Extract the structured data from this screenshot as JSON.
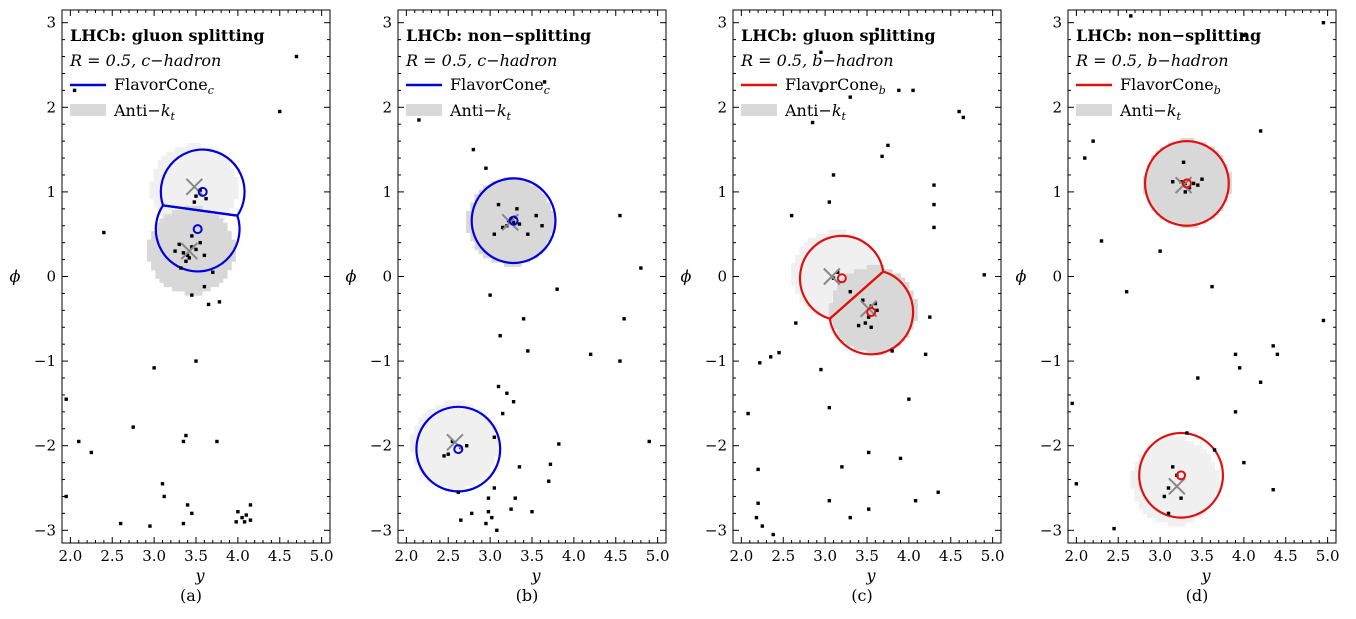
{
  "chart_data": [
    {
      "type": "scatter",
      "panel_label": "(a)",
      "title": "LHCb: gluon splitting",
      "subtitle": "R = 0.5, c−hadron",
      "xlabel": "y",
      "ylabel": "ϕ",
      "xlim": [
        1.9,
        5.1
      ],
      "ylim": [
        -3.15,
        3.15
      ],
      "xticks": [
        "2.0",
        "2.5",
        "3.0",
        "3.5",
        "4.0",
        "4.5",
        "5.0"
      ],
      "yticks": [
        "−3",
        "−2",
        "−1",
        "0",
        "1",
        "2",
        "3"
      ],
      "legend": [
        {
          "label": "FlavorCone",
          "sub": "c",
          "color": "#0000dd",
          "kind": "line"
        },
        {
          "label": "Anti−k",
          "sub": "t",
          "color": "#d9d9d9",
          "kind": "box"
        }
      ],
      "cone_color": "#0000dd",
      "cones": [
        {
          "cx": 3.58,
          "cy": 1.0,
          "r": 0.5,
          "clip": {
            "cx": 3.52,
            "cy": 0.56,
            "side": "outside"
          }
        },
        {
          "cx": 3.52,
          "cy": 0.56,
          "r": 0.5,
          "clip": {
            "cx": 3.58,
            "cy": 1.0,
            "side": "inside"
          }
        }
      ],
      "cone_centers": [
        [
          3.58,
          1.0
        ],
        [
          3.52,
          0.56
        ]
      ],
      "jet_axes": [
        [
          3.48,
          1.06
        ],
        [
          3.42,
          0.3
        ]
      ],
      "antikt_regions": [
        {
          "cx": 3.45,
          "cy": 1.02,
          "r": 0.5,
          "fill": "#f0f0f0"
        },
        {
          "cx": 3.42,
          "cy": 0.28,
          "r": 0.5,
          "fill": "#d8d8d8"
        }
      ],
      "particles": [
        [
          3.5,
          0.95
        ],
        [
          3.55,
          1.02
        ],
        [
          3.48,
          0.88
        ],
        [
          3.62,
          0.92
        ],
        [
          3.35,
          0.28
        ],
        [
          3.4,
          0.25
        ],
        [
          3.45,
          0.35
        ],
        [
          3.38,
          0.18
        ],
        [
          3.5,
          0.32
        ],
        [
          3.3,
          0.38
        ],
        [
          3.42,
          0.22
        ],
        [
          3.25,
          0.3
        ],
        [
          3.55,
          0.4
        ],
        [
          3.32,
          0.1
        ],
        [
          3.6,
          0.25
        ],
        [
          3.7,
          0.05
        ],
        [
          3.6,
          -0.12
        ],
        [
          3.65,
          -0.33
        ],
        [
          3.45,
          0.48
        ],
        [
          2.4,
          0.52
        ],
        [
          3.45,
          -0.22
        ],
        [
          3.78,
          -0.3
        ],
        [
          3.0,
          -1.08
        ],
        [
          3.5,
          -1.0
        ],
        [
          4.7,
          2.6
        ],
        [
          4.5,
          1.95
        ],
        [
          2.05,
          2.2
        ],
        [
          1.95,
          -1.45
        ],
        [
          2.1,
          -1.95
        ],
        [
          2.25,
          -2.08
        ],
        [
          2.75,
          -1.78
        ],
        [
          3.35,
          -1.95
        ],
        [
          3.38,
          -1.88
        ],
        [
          3.1,
          -2.45
        ],
        [
          3.12,
          -2.6
        ],
        [
          3.45,
          -2.8
        ],
        [
          3.4,
          -2.7
        ],
        [
          2.95,
          -2.95
        ],
        [
          2.6,
          -2.92
        ],
        [
          1.95,
          -2.6
        ],
        [
          3.75,
          -1.95
        ],
        [
          4.0,
          -2.78
        ],
        [
          4.05,
          -2.85
        ],
        [
          4.1,
          -2.82
        ],
        [
          4.15,
          -2.7
        ],
        [
          3.98,
          -2.9
        ],
        [
          4.08,
          -2.9
        ],
        [
          4.15,
          -2.88
        ],
        [
          3.35,
          -2.92
        ]
      ]
    },
    {
      "type": "scatter",
      "panel_label": "(b)",
      "title": "LHCb: non−splitting",
      "subtitle": "R = 0.5, c−hadron",
      "xlabel": "y",
      "ylabel": "ϕ",
      "xlim": [
        1.9,
        5.1
      ],
      "ylim": [
        -3.15,
        3.15
      ],
      "xticks": [
        "2.0",
        "2.5",
        "3.0",
        "3.5",
        "4.0",
        "4.5",
        "5.0"
      ],
      "yticks": [
        "−3",
        "−2",
        "−1",
        "0",
        "1",
        "2",
        "3"
      ],
      "legend": [
        {
          "label": "FlavorCone",
          "sub": "c",
          "color": "#0000dd",
          "kind": "line"
        },
        {
          "label": "Anti−k",
          "sub": "t",
          "color": "#d9d9d9",
          "kind": "box"
        }
      ],
      "cone_color": "#0000dd",
      "cones": [
        {
          "cx": 3.28,
          "cy": 0.66,
          "r": 0.5
        },
        {
          "cx": 2.62,
          "cy": -2.04,
          "r": 0.5
        }
      ],
      "cone_centers": [
        [
          3.28,
          0.66
        ],
        [
          2.62,
          -2.04
        ]
      ],
      "jet_axes": [
        [
          3.24,
          0.64
        ],
        [
          2.58,
          -1.96
        ]
      ],
      "antikt_regions": [
        {
          "cx": 3.22,
          "cy": 0.62,
          "r": 0.5,
          "fill": "#d8d8d8"
        },
        {
          "cx": 2.55,
          "cy": -2.02,
          "r": 0.5,
          "fill": "#f0f0f0"
        }
      ],
      "particles": [
        [
          3.22,
          0.66
        ],
        [
          3.25,
          0.68
        ],
        [
          3.28,
          0.64
        ],
        [
          3.3,
          0.7
        ],
        [
          3.2,
          0.6
        ],
        [
          3.35,
          0.62
        ],
        [
          3.15,
          0.58
        ],
        [
          3.45,
          0.5
        ],
        [
          3.55,
          0.72
        ],
        [
          3.62,
          0.6
        ],
        [
          3.1,
          0.85
        ],
        [
          3.32,
          0.8
        ],
        [
          3.05,
          0.5
        ],
        [
          2.55,
          -1.95
        ],
        [
          2.5,
          -2.1
        ],
        [
          2.65,
          -2.02
        ],
        [
          2.45,
          -2.12
        ],
        [
          2.72,
          -2.0
        ],
        [
          3.28,
          -1.48
        ],
        [
          3.2,
          -1.38
        ],
        [
          3.1,
          -1.3
        ],
        [
          3.15,
          -1.62
        ],
        [
          3.05,
          -1.9
        ],
        [
          3.05,
          -2.5
        ],
        [
          2.98,
          -2.62
        ],
        [
          2.98,
          -2.78
        ],
        [
          3.02,
          -2.85
        ],
        [
          3.08,
          -3.0
        ],
        [
          2.78,
          -2.8
        ],
        [
          2.62,
          -2.55
        ],
        [
          3.25,
          -2.75
        ],
        [
          3.3,
          -2.62
        ],
        [
          3.7,
          -2.42
        ],
        [
          3.72,
          -2.22
        ],
        [
          3.82,
          -1.98
        ],
        [
          3.35,
          -2.25
        ],
        [
          4.8,
          0.1
        ],
        [
          4.55,
          0.72
        ],
        [
          4.6,
          -0.5
        ],
        [
          4.55,
          -1.0
        ],
        [
          3.65,
          2.3
        ],
        [
          2.8,
          1.5
        ],
        [
          2.95,
          1.28
        ],
        [
          2.15,
          1.85
        ],
        [
          3.0,
          -0.22
        ],
        [
          3.12,
          -0.7
        ],
        [
          3.4,
          -0.5
        ],
        [
          3.8,
          -0.15
        ],
        [
          4.2,
          -0.92
        ],
        [
          3.45,
          -0.88
        ],
        [
          4.9,
          -1.95
        ],
        [
          2.95,
          -2.92
        ],
        [
          2.65,
          -2.88
        ],
        [
          3.5,
          -2.78
        ]
      ]
    },
    {
      "type": "scatter",
      "panel_label": "(c)",
      "title": "LHCb: gluon splitting",
      "subtitle": "R = 0.5, b−hadron",
      "xlabel": "y",
      "ylabel": "ϕ",
      "xlim": [
        1.9,
        5.1
      ],
      "ylim": [
        -3.15,
        3.15
      ],
      "xticks": [
        "2.0",
        "2.5",
        "3.0",
        "3.5",
        "4.0",
        "4.5",
        "5.0"
      ],
      "yticks": [
        "−3",
        "−2",
        "−1",
        "0",
        "1",
        "2",
        "3"
      ],
      "legend": [
        {
          "label": "FlavorCone",
          "sub": "b",
          "color": "#e01010",
          "kind": "line"
        },
        {
          "label": "Anti−k",
          "sub": "t",
          "color": "#d9d9d9",
          "kind": "box"
        }
      ],
      "cone_color": "#e01010",
      "cones": [
        {
          "cx": 3.2,
          "cy": -0.02,
          "r": 0.5,
          "clip": {
            "cx": 3.55,
            "cy": -0.42,
            "side": "outside"
          }
        },
        {
          "cx": 3.55,
          "cy": -0.42,
          "r": 0.5,
          "clip": {
            "cx": 3.2,
            "cy": -0.02,
            "side": "inside"
          }
        }
      ],
      "cone_centers": [
        [
          3.2,
          -0.02
        ],
        [
          3.55,
          -0.42
        ]
      ],
      "jet_axes": [
        [
          3.08,
          0.0
        ],
        [
          3.52,
          -0.38
        ]
      ],
      "antikt_regions": [
        {
          "cx": 3.1,
          "cy": 0.0,
          "r": 0.5,
          "fill": "#f0f0f0"
        },
        {
          "cx": 3.55,
          "cy": -0.42,
          "r": 0.5,
          "fill": "#d8d8d8"
        }
      ],
      "particles": [
        [
          3.1,
          -0.02
        ],
        [
          3.15,
          0.05
        ],
        [
          3.3,
          -0.18
        ],
        [
          3.55,
          -0.35
        ],
        [
          3.6,
          -0.32
        ],
        [
          3.52,
          -0.48
        ],
        [
          3.48,
          -0.55
        ],
        [
          3.62,
          -0.4
        ],
        [
          3.45,
          -0.28
        ],
        [
          3.4,
          -0.58
        ],
        [
          3.55,
          -0.6
        ],
        [
          2.95,
          2.2
        ],
        [
          2.95,
          2.65
        ],
        [
          3.3,
          2.12
        ],
        [
          3.75,
          1.55
        ],
        [
          3.68,
          1.42
        ],
        [
          3.1,
          1.2
        ],
        [
          3.05,
          0.88
        ],
        [
          2.6,
          0.72
        ],
        [
          2.85,
          1.82
        ],
        [
          4.05,
          2.2
        ],
        [
          4.6,
          1.95
        ],
        [
          4.65,
          1.88
        ],
        [
          4.3,
          1.08
        ],
        [
          4.3,
          0.85
        ],
        [
          4.3,
          0.58
        ],
        [
          4.9,
          0.02
        ],
        [
          4.25,
          -0.48
        ],
        [
          4.2,
          -0.92
        ],
        [
          4.0,
          -1.45
        ],
        [
          3.8,
          -0.88
        ],
        [
          2.65,
          -0.55
        ],
        [
          2.45,
          -0.9
        ],
        [
          2.35,
          -0.95
        ],
        [
          2.22,
          -1.02
        ],
        [
          2.08,
          -1.62
        ],
        [
          2.2,
          -2.28
        ],
        [
          2.2,
          -2.68
        ],
        [
          2.18,
          -2.85
        ],
        [
          2.25,
          -2.95
        ],
        [
          2.38,
          -3.05
        ],
        [
          2.95,
          -1.1
        ],
        [
          3.05,
          -1.55
        ],
        [
          3.2,
          -2.25
        ],
        [
          3.05,
          -2.65
        ],
        [
          3.3,
          -2.85
        ],
        [
          3.52,
          -2.75
        ],
        [
          3.52,
          -2.08
        ],
        [
          3.9,
          -2.15
        ],
        [
          4.08,
          -2.65
        ],
        [
          4.35,
          -2.55
        ],
        [
          3.62,
          2.92
        ],
        [
          3.88,
          2.2
        ]
      ]
    },
    {
      "type": "scatter",
      "panel_label": "(d)",
      "title": "LHCb: non−splitting",
      "subtitle": "R = 0.5, b−hadron",
      "xlabel": "y",
      "ylabel": "ϕ",
      "xlim": [
        1.9,
        5.1
      ],
      "ylim": [
        -3.15,
        3.15
      ],
      "xticks": [
        "2.0",
        "2.5",
        "3.0",
        "3.5",
        "4.0",
        "4.5",
        "5.0"
      ],
      "yticks": [
        "−3",
        "−2",
        "−1",
        "0",
        "1",
        "2",
        "3"
      ],
      "legend": [
        {
          "label": "FlavorCone",
          "sub": "b",
          "color": "#e01010",
          "kind": "line"
        },
        {
          "label": "Anti−k",
          "sub": "t",
          "color": "#d9d9d9",
          "kind": "box"
        }
      ],
      "cone_color": "#e01010",
      "cones": [
        {
          "cx": 3.32,
          "cy": 1.1,
          "r": 0.5
        },
        {
          "cx": 3.25,
          "cy": -2.35,
          "r": 0.5
        }
      ],
      "cone_centers": [
        [
          3.32,
          1.1
        ],
        [
          3.25,
          -2.35
        ]
      ],
      "jet_axes": [
        [
          3.28,
          1.08
        ],
        [
          3.2,
          -2.48
        ]
      ],
      "antikt_regions": [
        {
          "cx": 3.3,
          "cy": 1.08,
          "r": 0.5,
          "fill": "#d8d8d8"
        },
        {
          "cx": 3.15,
          "cy": -2.45,
          "r": 0.5,
          "fill": "#f0f0f0"
        }
      ],
      "particles": [
        [
          3.3,
          1.1
        ],
        [
          3.35,
          1.05
        ],
        [
          3.4,
          1.1
        ],
        [
          3.25,
          1.12
        ],
        [
          3.15,
          1.12
        ],
        [
          3.45,
          1.08
        ],
        [
          3.5,
          1.15
        ],
        [
          3.28,
          1.35
        ],
        [
          3.3,
          1.0
        ],
        [
          3.2,
          -2.35
        ],
        [
          3.15,
          -2.25
        ],
        [
          3.1,
          -2.5
        ],
        [
          3.05,
          -2.6
        ],
        [
          3.25,
          -2.62
        ],
        [
          3.1,
          -2.8
        ],
        [
          3.62,
          -0.12
        ],
        [
          3.9,
          -0.92
        ],
        [
          3.95,
          -1.08
        ],
        [
          4.2,
          -1.25
        ],
        [
          4.35,
          -0.82
        ],
        [
          4.4,
          -0.92
        ],
        [
          4.95,
          -0.52
        ],
        [
          2.2,
          1.6
        ],
        [
          2.1,
          1.4
        ],
        [
          2.3,
          0.42
        ],
        [
          2.6,
          -0.18
        ],
        [
          3.0,
          0.3
        ],
        [
          3.45,
          -1.2
        ],
        [
          3.9,
          -1.6
        ],
        [
          4.0,
          -2.2
        ],
        [
          4.35,
          -2.52
        ],
        [
          4.2,
          1.72
        ],
        [
          2.65,
          3.08
        ],
        [
          4.0,
          2.85
        ],
        [
          4.95,
          3.0
        ],
        [
          1.95,
          -1.5
        ],
        [
          2.0,
          -2.45
        ],
        [
          2.45,
          -2.98
        ],
        [
          3.32,
          -1.85
        ],
        [
          3.65,
          -2.05
        ]
      ]
    }
  ]
}
